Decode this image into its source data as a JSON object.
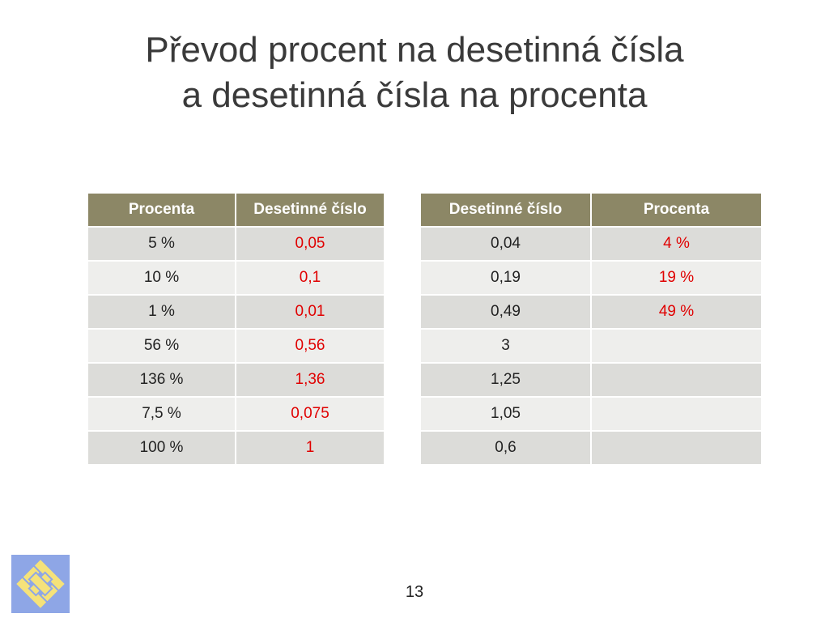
{
  "slide": {
    "title_line1": "Převod procent na desetinná čísla",
    "title_line2": "a desetinná čísla na procenta",
    "page_number": "13"
  },
  "table_left": {
    "headers": [
      "Procenta",
      "Desetinné číslo"
    ],
    "rows": [
      [
        "5 %",
        "0,05"
      ],
      [
        "10 %",
        "0,1"
      ],
      [
        "1 %",
        "0,01"
      ],
      [
        "56 %",
        "0,56"
      ],
      [
        "136 %",
        "1,36"
      ],
      [
        "7,5 %",
        "0,075"
      ],
      [
        "100 %",
        "1"
      ]
    ]
  },
  "table_right": {
    "headers": [
      "Desetinné číslo",
      "Procenta"
    ],
    "rows": [
      [
        "0,04",
        "4 %"
      ],
      [
        "0,19",
        "19 %"
      ],
      [
        "0,49",
        "49 %"
      ],
      [
        "3",
        ""
      ],
      [
        "1,25",
        ""
      ],
      [
        "1,05",
        ""
      ],
      [
        "0,6",
        ""
      ]
    ]
  },
  "colors": {
    "header_bg": "#8c8766",
    "row_odd": "#dcdcd9",
    "row_even": "#eeeeec",
    "answer_text": "#e00000",
    "logo_blue": "#8ea6e6",
    "logo_yellow": "#f5e27a"
  },
  "logo": {
    "icon": "woven-diamond-logo-icon"
  }
}
